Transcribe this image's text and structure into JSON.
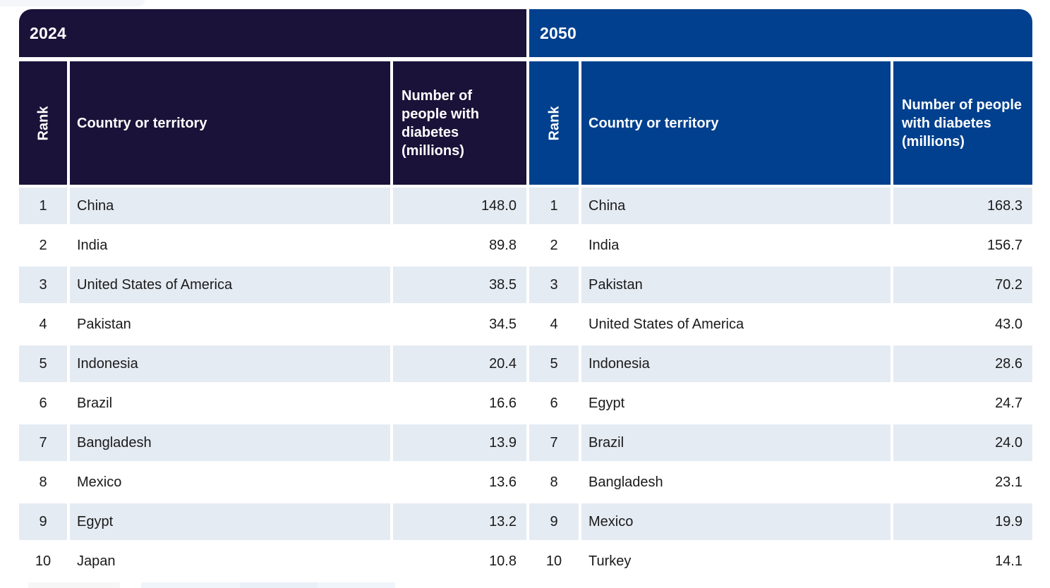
{
  "theme": {
    "navy_2024": "#1a1238",
    "blue_2050": "#00408e",
    "row_alt_background": "#e5ebf3",
    "header_text": "#ffffff",
    "body_text": "#1a1a1a"
  },
  "chart_data": [
    {
      "type": "table",
      "title": "2024",
      "columns": [
        "Rank",
        "Country or territory",
        "Number of people with diabetes (millions)"
      ],
      "rows": [
        {
          "rank": "1",
          "country": "China",
          "value": "148.0"
        },
        {
          "rank": "2",
          "country": "India",
          "value": "89.8"
        },
        {
          "rank": "3",
          "country": "United States of America",
          "value": "38.5"
        },
        {
          "rank": "4",
          "country": "Pakistan",
          "value": "34.5"
        },
        {
          "rank": "5",
          "country": "Indonesia",
          "value": "20.4"
        },
        {
          "rank": "6",
          "country": "Brazil",
          "value": "16.6"
        },
        {
          "rank": "7",
          "country": "Bangladesh",
          "value": "13.9"
        },
        {
          "rank": "8",
          "country": "Mexico",
          "value": "13.6"
        },
        {
          "rank": "9",
          "country": "Egypt",
          "value": "13.2"
        },
        {
          "rank": "10",
          "country": "Japan",
          "value": "10.8"
        }
      ]
    },
    {
      "type": "table",
      "title": "2050",
      "columns": [
        "Rank",
        "Country or territory",
        "Number of people with diabetes (millions)"
      ],
      "rows": [
        {
          "rank": "1",
          "country": "China",
          "value": "168.3"
        },
        {
          "rank": "2",
          "country": "India",
          "value": "156.7"
        },
        {
          "rank": "3",
          "country": "Pakistan",
          "value": "70.2"
        },
        {
          "rank": "4",
          "country": "United States of America",
          "value": "43.0"
        },
        {
          "rank": "5",
          "country": "Indonesia",
          "value": "28.6"
        },
        {
          "rank": "6",
          "country": "Egypt",
          "value": "24.7"
        },
        {
          "rank": "7",
          "country": "Brazil",
          "value": "24.0"
        },
        {
          "rank": "8",
          "country": "Bangladesh",
          "value": "23.1"
        },
        {
          "rank": "9",
          "country": "Mexico",
          "value": "19.9"
        },
        {
          "rank": "10",
          "country": "Turkey",
          "value": "14.1"
        }
      ]
    }
  ]
}
